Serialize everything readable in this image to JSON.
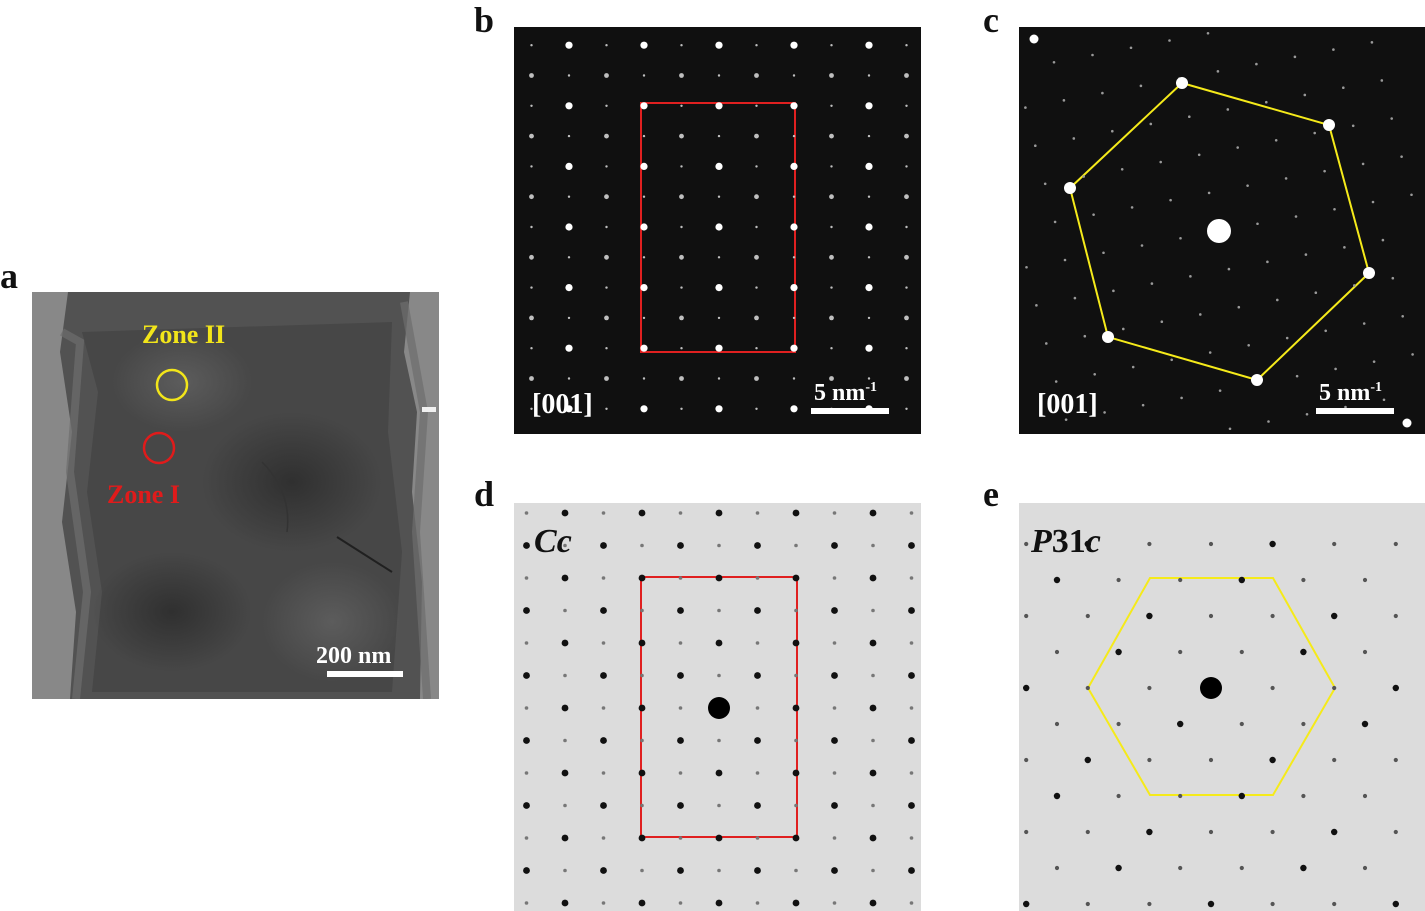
{
  "panels": {
    "a": {
      "letter": "a",
      "zone2_label": "Zone II",
      "zone1_label": "Zone I",
      "scale_label": "200 nm",
      "colors": {
        "zone2": "#f2e51a",
        "zone1": "#e01b1b"
      }
    },
    "b": {
      "letter": "b",
      "axis": "[001]",
      "scale_label": "5 nm",
      "scale_sup": "-1",
      "overlay_color": "#e02020"
    },
    "c": {
      "letter": "c",
      "axis": "[001]",
      "scale_label": "5 nm",
      "scale_sup": "-1",
      "overlay_color": "#f5ea1a"
    },
    "d": {
      "letter": "d",
      "space_group_a": "C",
      "space_group_b": "c",
      "overlay_color": "#e02020"
    },
    "e": {
      "letter": "e",
      "space_group_a": "P",
      "space_group_mid": "31",
      "space_group_b": "c",
      "overlay_color": "#f5ea1a"
    }
  }
}
